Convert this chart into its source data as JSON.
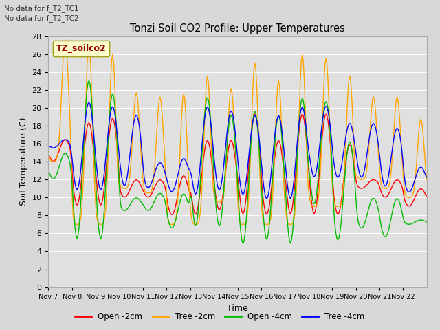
{
  "title": "Tonzi Soil CO2 Profile: Upper Temperatures",
  "xlabel": "Time",
  "ylabel": "Soil Temperature (C)",
  "annotation_line1": "No data for f_T2_TC1",
  "annotation_line2": "No data for f_T2_TC2",
  "legend_box_label": "TZ_soilco2",
  "ylim": [
    0,
    28
  ],
  "yticks": [
    0,
    2,
    4,
    6,
    8,
    10,
    12,
    14,
    16,
    18,
    20,
    22,
    24,
    26,
    28
  ],
  "series_labels": [
    "Open -2cm",
    "Tree -2cm",
    "Open -4cm",
    "Tree -4cm"
  ],
  "series_colors": [
    "#ff0000",
    "#ffa500",
    "#00bb00",
    "#0000ff"
  ],
  "fig_facecolor": "#d8d8d8",
  "ax_facecolor": "#e0e0e0",
  "n_days": 16,
  "start_day": 7,
  "xtick_labels": [
    "Nov 7",
    "Nov 8",
    "Nov 9",
    "Nov 10",
    "Nov 11",
    "Nov 12",
    "Nov 13",
    "Nov 14",
    "Nov 15",
    "Nov 16",
    "Nov 17",
    "Nov 18",
    "Nov 19",
    "Nov 20",
    "Nov 21",
    "Nov 22"
  ],
  "tree2_peaks": [
    28.0,
    28.0,
    26.5,
    22.0,
    21.5,
    22.0,
    24.0,
    22.5,
    25.5,
    23.5,
    26.5,
    26.0,
    24.0,
    21.5,
    21.5,
    19.0
  ],
  "tree2_trough": [
    14.0,
    7.0,
    7.0,
    11.0,
    10.5,
    7.0,
    7.0,
    9.5,
    7.0,
    7.0,
    7.0,
    9.0,
    9.0,
    12.0,
    11.0,
    10.0
  ],
  "open2_peaks": [
    16.5,
    18.5,
    19.0,
    12.0,
    12.0,
    12.5,
    16.5,
    16.5,
    19.5,
    16.5,
    19.5,
    19.5,
    16.0,
    12.0,
    12.0,
    11.0
  ],
  "open2_trough": [
    14.0,
    9.0,
    9.0,
    10.0,
    10.0,
    8.0,
    8.0,
    8.5,
    8.0,
    8.0,
    8.0,
    8.0,
    8.0,
    11.0,
    10.0,
    9.0
  ],
  "open4_peaks": [
    15.0,
    23.5,
    22.0,
    10.0,
    10.5,
    10.5,
    21.5,
    19.5,
    20.0,
    19.5,
    21.5,
    21.0,
    16.5,
    10.0,
    10.0,
    7.5
  ],
  "open4_trough": [
    12.0,
    5.0,
    5.0,
    8.5,
    8.5,
    6.5,
    6.5,
    6.5,
    4.5,
    5.0,
    4.5,
    9.0,
    5.0,
    6.5,
    5.5,
    7.0
  ],
  "tree4_peaks": [
    16.5,
    21.0,
    20.5,
    19.5,
    14.0,
    14.5,
    20.5,
    20.0,
    19.5,
    19.5,
    20.5,
    20.5,
    18.5,
    18.5,
    18.0,
    13.5
  ],
  "tree4_trough": [
    15.5,
    10.5,
    10.5,
    11.0,
    11.0,
    10.5,
    10.0,
    10.5,
    10.0,
    9.5,
    9.5,
    12.0,
    12.0,
    12.0,
    11.0,
    10.5
  ]
}
